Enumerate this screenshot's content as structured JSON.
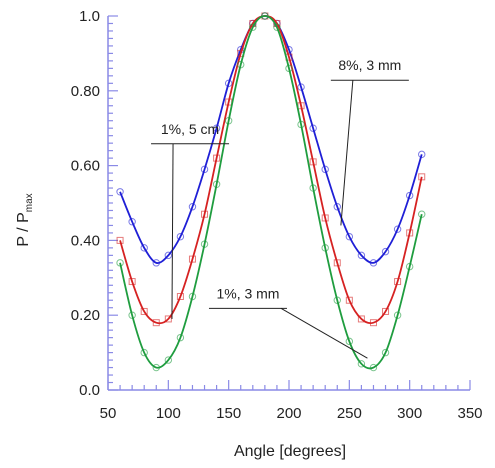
{
  "chart_data": {
    "type": "scatter",
    "xlabel": "Angle [degrees]",
    "ylabel": {
      "main": "P / P",
      "sub": "max"
    },
    "xlim": [
      50,
      350
    ],
    "ylim": [
      0.0,
      1.0
    ],
    "x_ticks": [
      50,
      100,
      150,
      200,
      250,
      300,
      350
    ],
    "y_ticks": [
      0.0,
      0.2,
      0.4,
      0.6,
      0.8,
      1.0
    ],
    "y_tick_labels": [
      "0.0",
      "0.20",
      "0.40",
      "0.60",
      "0.80",
      "1.0"
    ],
    "grid": false,
    "legend": "none",
    "series": [
      {
        "color": "#1f1fd6",
        "marker": "circle",
        "x": [
          60,
          70,
          80,
          90,
          100,
          110,
          120,
          130,
          140,
          150,
          160,
          170,
          180,
          190,
          200,
          210,
          220,
          230,
          240,
          250,
          260,
          270,
          280,
          290,
          300,
          310
        ],
        "values": [
          0.53,
          0.45,
          0.38,
          0.34,
          0.36,
          0.41,
          0.49,
          0.59,
          0.7,
          0.82,
          0.91,
          0.98,
          1.0,
          0.98,
          0.91,
          0.81,
          0.7,
          0.59,
          0.49,
          0.41,
          0.36,
          0.34,
          0.37,
          0.43,
          0.52,
          0.63
        ]
      },
      {
        "color": "#d62222",
        "marker": "square",
        "x": [
          60,
          70,
          80,
          90,
          100,
          110,
          120,
          130,
          140,
          150,
          160,
          170,
          180,
          190,
          200,
          210,
          220,
          230,
          240,
          250,
          260,
          270,
          280,
          290,
          300,
          310
        ],
        "values": [
          0.4,
          0.29,
          0.21,
          0.18,
          0.19,
          0.25,
          0.35,
          0.47,
          0.62,
          0.77,
          0.9,
          0.98,
          1.0,
          0.98,
          0.89,
          0.76,
          0.61,
          0.46,
          0.34,
          0.24,
          0.19,
          0.18,
          0.21,
          0.29,
          0.42,
          0.57
        ]
      },
      {
        "color": "#1f9d3f",
        "marker": "circle",
        "x": [
          60,
          70,
          80,
          90,
          100,
          110,
          120,
          130,
          140,
          150,
          160,
          170,
          180,
          190,
          200,
          210,
          220,
          230,
          240,
          250,
          260,
          270,
          280,
          290,
          300,
          310
        ],
        "values": [
          0.34,
          0.2,
          0.1,
          0.06,
          0.08,
          0.14,
          0.25,
          0.39,
          0.55,
          0.72,
          0.87,
          0.97,
          1.0,
          0.97,
          0.86,
          0.71,
          0.54,
          0.38,
          0.24,
          0.13,
          0.07,
          0.06,
          0.1,
          0.2,
          0.33,
          0.47
        ]
      }
    ],
    "annotations": [
      {
        "text": "1%, 5 cm",
        "label_x": 118,
        "label_y": 0.685,
        "target_x": 103,
        "target_y": 0.19
      },
      {
        "text": "8%, 3 mm",
        "label_x": 267,
        "label_y": 0.855,
        "target_x": 243,
        "target_y": 0.44
      },
      {
        "text": "1%, 3 mm",
        "label_x": 166,
        "label_y": 0.245,
        "target_x": 265,
        "target_y": 0.085
      }
    ]
  }
}
